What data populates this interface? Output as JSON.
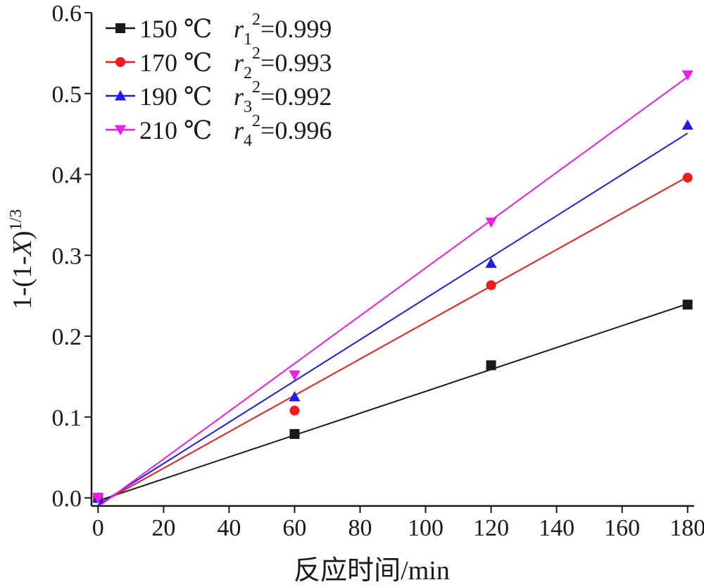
{
  "chart_data": {
    "type": "scatter",
    "title": "",
    "xlabel": "反应时间/min",
    "ylabel": "1-(1-X)1/3",
    "ylabel_parts": {
      "base": "1-(1-",
      "italic": "X",
      "close": ")",
      "sup": "1/3"
    },
    "xlim": [
      -2,
      182
    ],
    "ylim": [
      -0.01,
      0.6
    ],
    "x_ticks": [
      0,
      20,
      40,
      60,
      80,
      100,
      120,
      140,
      160,
      180
    ],
    "x_tick_labels": [
      "0",
      "20",
      "40",
      "60",
      "80",
      "100",
      "120",
      "140",
      "160",
      "180"
    ],
    "y_ticks": [
      0.0,
      0.1,
      0.2,
      0.3,
      0.4,
      0.5,
      0.6
    ],
    "y_tick_labels": [
      "0.0",
      "0.1",
      "0.2",
      "0.3",
      "0.4",
      "0.5",
      "0.6"
    ],
    "grid": false,
    "legend_position": "top-left",
    "series": [
      {
        "name": "150 ℃",
        "r2_label": "r12=0.999",
        "r2_parts": {
          "r": "r",
          "sub": "1",
          "sup": "2",
          "value": "=0.999"
        },
        "color": "#1a1a1a",
        "marker": "square",
        "x": [
          0,
          60,
          120,
          180
        ],
        "y": [
          0.0,
          0.079,
          0.164,
          0.239
        ],
        "fit": {
          "slope": 0.001353,
          "intercept": -0.0036
        }
      },
      {
        "name": "170 ℃",
        "r2_label": "r22=0.993",
        "r2_parts": {
          "r": "r",
          "sub": "2",
          "sup": "2",
          "value": "=0.993"
        },
        "color": "#ee1c1c",
        "marker": "circle",
        "x": [
          0,
          60,
          120,
          180
        ],
        "y": [
          0.0,
          0.108,
          0.263,
          0.396
        ],
        "fit": {
          "slope": 0.002253,
          "intercept": -0.0084
        }
      },
      {
        "name": "190 ℃",
        "r2_label": "r32=0.992",
        "r2_parts": {
          "r": "r",
          "sub": "3",
          "sup": "2",
          "value": "=0.992"
        },
        "color": "#1c1cee",
        "marker": "triangle-up",
        "x": [
          0,
          60,
          120,
          180
        ],
        "y": [
          0.0,
          0.125,
          0.29,
          0.461
        ],
        "fit": {
          "slope": 0.002553,
          "intercept": -0.0086
        }
      },
      {
        "name": "210 ℃",
        "r2_label": "r42=0.996",
        "r2_parts": {
          "r": "r",
          "sub": "4",
          "sup": "2",
          "value": "=0.996"
        },
        "color": "#ee1cee",
        "marker": "triangle-down",
        "x": [
          0,
          60,
          120,
          180
        ],
        "y": [
          0.0,
          0.152,
          0.341,
          0.523
        ],
        "fit": {
          "slope": 0.002953,
          "intercept": -0.011
        }
      }
    ]
  }
}
